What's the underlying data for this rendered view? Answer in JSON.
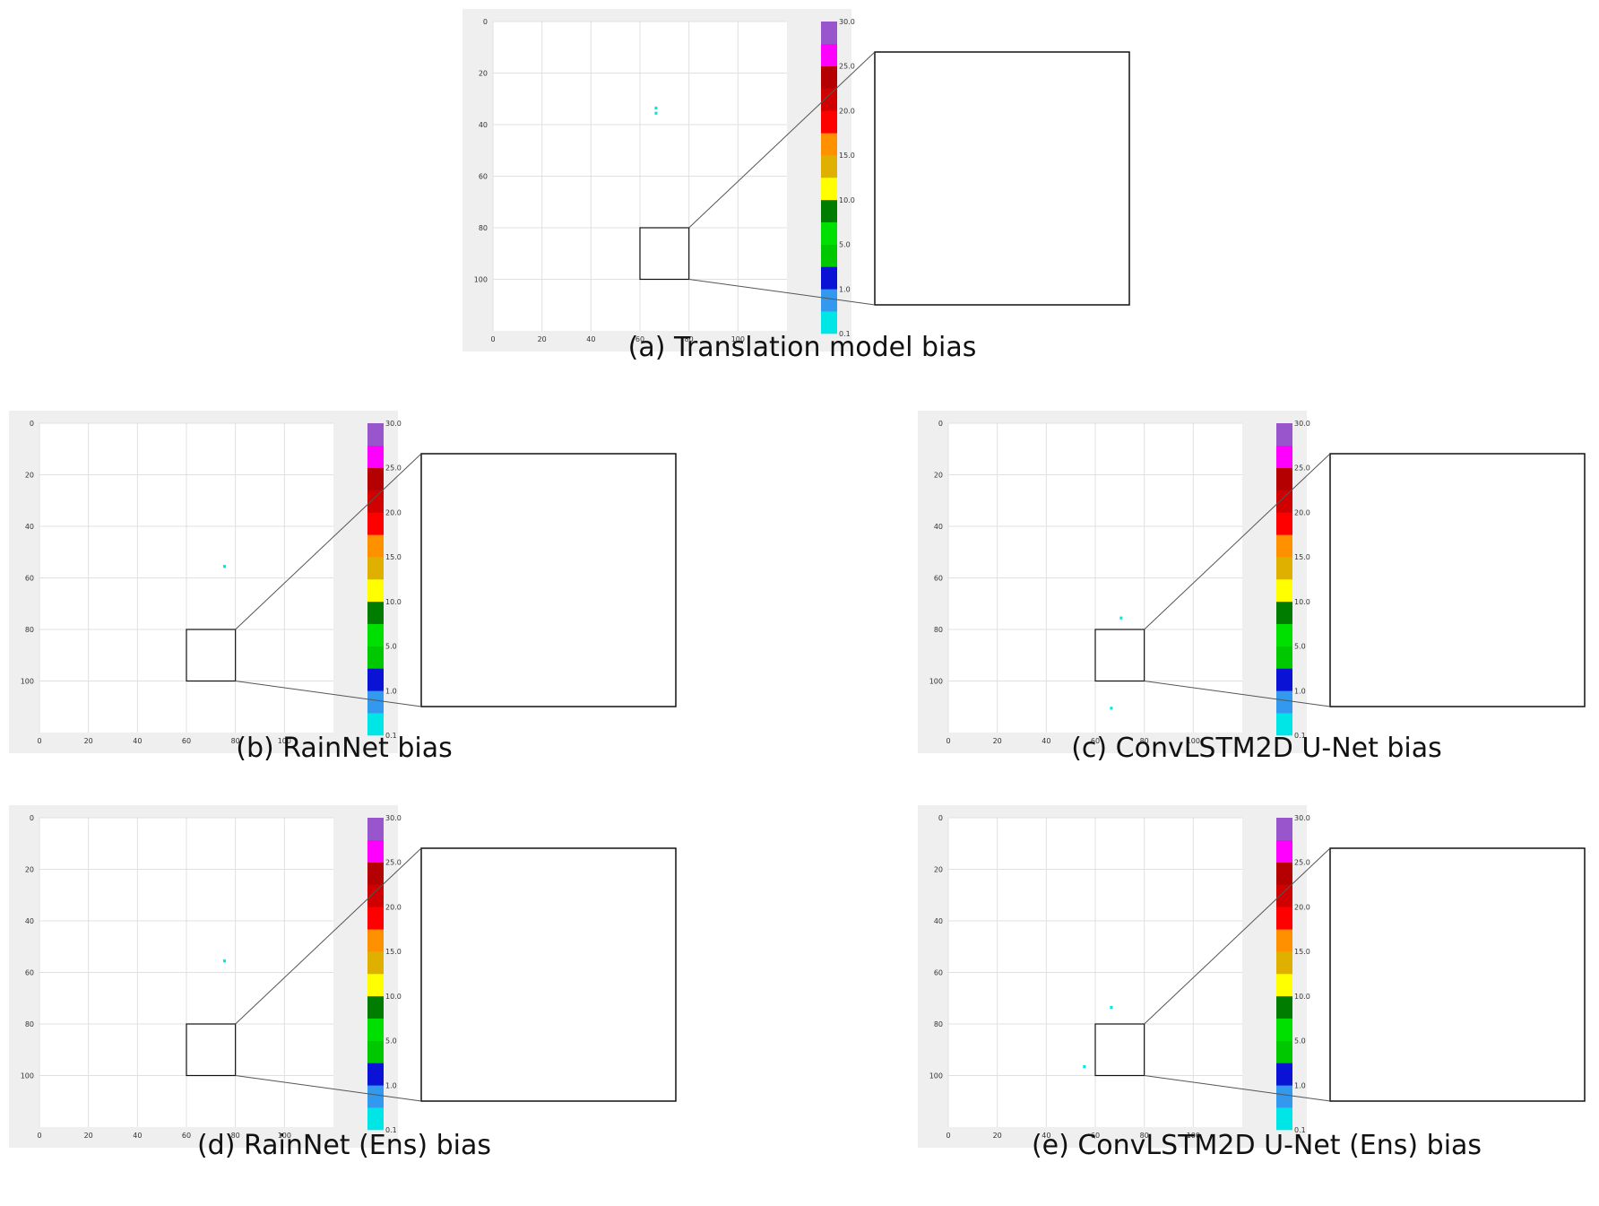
{
  "chart_data": [
    {
      "type": "heatmap",
      "id": "a",
      "caption": "(a) Translation model bias",
      "xticks": [
        0,
        20,
        40,
        60,
        80,
        100
      ],
      "yticks": [
        0,
        20,
        40,
        60,
        80,
        100
      ],
      "xlim": [
        0,
        120
      ],
      "ylim": [
        120,
        0
      ],
      "colorbar_ticks": [
        "30.0",
        "25.0",
        "20.0",
        "15.0",
        "10.0",
        "5.0",
        "1.0",
        "0.1"
      ],
      "zoom_region": {
        "x": [
          60,
          80
        ],
        "y": [
          80,
          100
        ]
      },
      "seed": 11,
      "intensity": 1.0
    },
    {
      "type": "heatmap",
      "id": "b",
      "caption": "(b) RainNet bias",
      "xticks": [
        0,
        20,
        40,
        60,
        80,
        100
      ],
      "yticks": [
        0,
        20,
        40,
        60,
        80,
        100
      ],
      "xlim": [
        0,
        120
      ],
      "ylim": [
        120,
        0
      ],
      "colorbar_ticks": [
        "30.0",
        "25.0",
        "20.0",
        "15.0",
        "10.0",
        "5.0",
        "1.0",
        "0.1"
      ],
      "zoom_region": {
        "x": [
          60,
          80
        ],
        "y": [
          80,
          100
        ]
      },
      "seed": 23,
      "intensity": 0.55
    },
    {
      "type": "heatmap",
      "id": "c",
      "caption": "(c) ConvLSTM2D U-Net bias",
      "xticks": [
        0,
        20,
        40,
        60,
        80,
        100
      ],
      "yticks": [
        0,
        20,
        40,
        60,
        80,
        100
      ],
      "xlim": [
        0,
        120
      ],
      "ylim": [
        120,
        0
      ],
      "colorbar_ticks": [
        "30.0",
        "25.0",
        "20.0",
        "15.0",
        "10.0",
        "5.0",
        "1.0",
        "0.1"
      ],
      "zoom_region": {
        "x": [
          60,
          80
        ],
        "y": [
          80,
          100
        ]
      },
      "seed": 37,
      "intensity": 0.5
    },
    {
      "type": "heatmap",
      "id": "d",
      "caption": "(d) RainNet (Ens) bias",
      "xticks": [
        0,
        20,
        40,
        60,
        80,
        100
      ],
      "yticks": [
        0,
        20,
        40,
        60,
        80,
        100
      ],
      "xlim": [
        0,
        120
      ],
      "ylim": [
        120,
        0
      ],
      "colorbar_ticks": [
        "30.0",
        "25.0",
        "20.0",
        "15.0",
        "10.0",
        "5.0",
        "1.0",
        "0.1"
      ],
      "zoom_region": {
        "x": [
          60,
          80
        ],
        "y": [
          80,
          100
        ]
      },
      "seed": 23,
      "intensity": 0.52
    },
    {
      "type": "heatmap",
      "id": "e",
      "caption": "(e) ConvLSTM2D U-Net (Ens) bias",
      "xticks": [
        0,
        20,
        40,
        60,
        80,
        100
      ],
      "yticks": [
        0,
        20,
        40,
        60,
        80,
        100
      ],
      "xlim": [
        0,
        120
      ],
      "ylim": [
        120,
        0
      ],
      "colorbar_ticks": [
        "30.0",
        "25.0",
        "20.0",
        "15.0",
        "10.0",
        "5.0",
        "1.0",
        "0.1"
      ],
      "zoom_region": {
        "x": [
          60,
          80
        ],
        "y": [
          80,
          100
        ]
      },
      "seed": 41,
      "intensity": 0.5
    }
  ],
  "colormap": [
    "#00e5e5",
    "#3399ee",
    "#0a12d6",
    "#00c800",
    "#00e000",
    "#007d00",
    "#ffff00",
    "#e0b000",
    "#ff9000",
    "#ff0000",
    "#d00000",
    "#b40000",
    "#ff00ff",
    "#9955cc"
  ]
}
